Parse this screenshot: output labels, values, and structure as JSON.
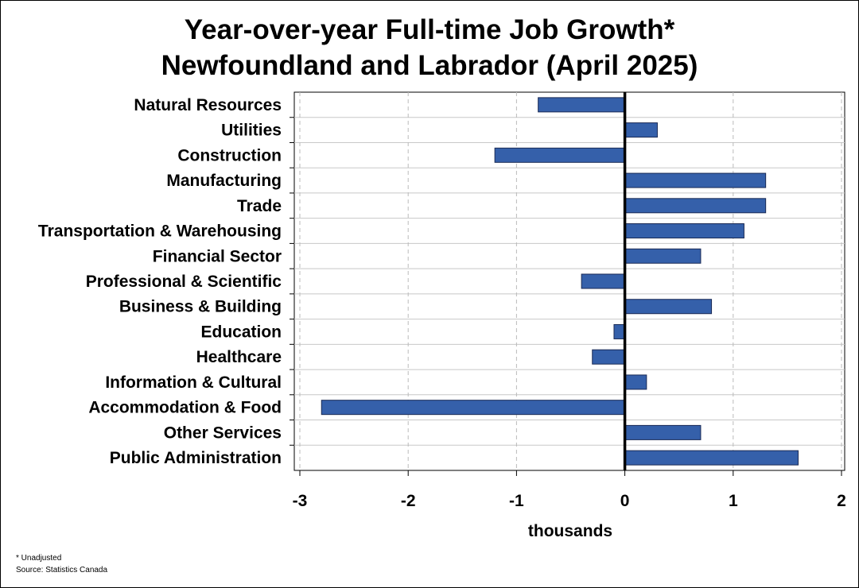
{
  "title_line1": "Year-over-year Full-time Job Growth*",
  "title_line2": "Newfoundland and Labrador (April 2025)",
  "footnote": "* Unadjusted",
  "source": "Source: Statistics Canada",
  "colors": {
    "bar": "#3560aa",
    "bar_stroke": "#1a2a55",
    "grid": "#c8c8c8",
    "zero_line": "#000000"
  },
  "chart_data": {
    "type": "bar",
    "orientation": "horizontal",
    "categories": [
      "Natural Resources",
      "Utilities",
      "Construction",
      "Manufacturing",
      "Trade",
      "Transportation & Warehousing",
      "Financial Sector",
      "Professional & Scientific",
      "Business & Building",
      "Education",
      "Healthcare",
      "Information & Cultural",
      "Accommodation & Food",
      "Other Services",
      "Public Administration"
    ],
    "values": [
      -0.8,
      0.3,
      -1.2,
      1.3,
      1.3,
      1.1,
      0.7,
      -0.4,
      0.8,
      -0.1,
      -0.3,
      0.2,
      -2.8,
      0.7,
      1.6
    ],
    "xlabel": "thousands",
    "xlim": [
      -3,
      2
    ],
    "xticks": [
      "-3",
      "-2",
      "-1",
      "0",
      "1",
      "2"
    ],
    "grid": true
  }
}
